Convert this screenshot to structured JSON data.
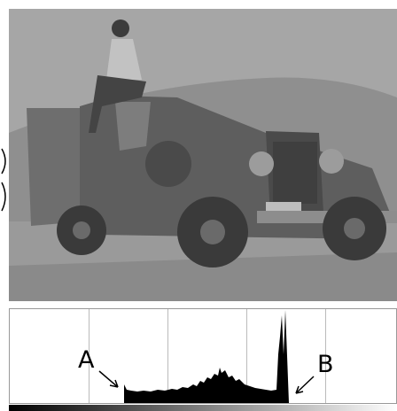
{
  "annotations": [
    {
      "label": "A"
    },
    {
      "label": "B"
    }
  ]
}
